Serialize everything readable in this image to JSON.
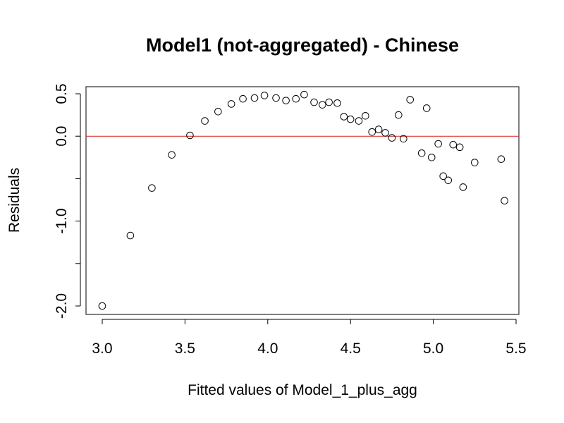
{
  "chart_data": {
    "type": "scatter",
    "title": "Model1 (not-aggregated) - Chinese",
    "xlabel": "Fitted values of Model_1_plus_agg",
    "ylabel": "Residuals",
    "xlim": [
      3.0,
      5.5
    ],
    "ylim": [
      -2.0,
      0.5
    ],
    "x_ticks": [
      3.0,
      3.5,
      4.0,
      4.5,
      5.0,
      5.5
    ],
    "x_tick_labels": [
      "3.0",
      "3.5",
      "4.0",
      "4.5",
      "5.0",
      "5.5"
    ],
    "y_ticks": [
      -2.0,
      -1.5,
      -1.0,
      -0.5,
      0.0,
      0.5
    ],
    "y_tick_labels": [
      "-2.0",
      "",
      "-1.0",
      "",
      "0.0",
      "0.5"
    ],
    "grid": false,
    "reference_line": {
      "y": 0.0,
      "color": "#d62020"
    },
    "marker_color": "#000000",
    "points": [
      {
        "x": 3.0,
        "y": -2.0
      },
      {
        "x": 3.17,
        "y": -1.17
      },
      {
        "x": 3.3,
        "y": -0.61
      },
      {
        "x": 3.42,
        "y": -0.22
      },
      {
        "x": 3.53,
        "y": 0.01
      },
      {
        "x": 3.62,
        "y": 0.18
      },
      {
        "x": 3.7,
        "y": 0.29
      },
      {
        "x": 3.78,
        "y": 0.38
      },
      {
        "x": 3.85,
        "y": 0.44
      },
      {
        "x": 3.92,
        "y": 0.45
      },
      {
        "x": 3.98,
        "y": 0.48
      },
      {
        "x": 4.05,
        "y": 0.45
      },
      {
        "x": 4.11,
        "y": 0.42
      },
      {
        "x": 4.17,
        "y": 0.44
      },
      {
        "x": 4.22,
        "y": 0.49
      },
      {
        "x": 4.28,
        "y": 0.4
      },
      {
        "x": 4.33,
        "y": 0.37
      },
      {
        "x": 4.37,
        "y": 0.4
      },
      {
        "x": 4.42,
        "y": 0.39
      },
      {
        "x": 4.46,
        "y": 0.23
      },
      {
        "x": 4.5,
        "y": 0.2
      },
      {
        "x": 4.55,
        "y": 0.18
      },
      {
        "x": 4.59,
        "y": 0.24
      },
      {
        "x": 4.63,
        "y": 0.05
      },
      {
        "x": 4.67,
        "y": 0.08
      },
      {
        "x": 4.71,
        "y": 0.04
      },
      {
        "x": 4.75,
        "y": -0.02
      },
      {
        "x": 4.79,
        "y": 0.25
      },
      {
        "x": 4.82,
        "y": -0.03
      },
      {
        "x": 4.86,
        "y": 0.43
      },
      {
        "x": 4.93,
        "y": -0.2
      },
      {
        "x": 4.96,
        "y": 0.33
      },
      {
        "x": 4.99,
        "y": -0.25
      },
      {
        "x": 5.03,
        "y": -0.09
      },
      {
        "x": 5.06,
        "y": -0.47
      },
      {
        "x": 5.09,
        "y": -0.52
      },
      {
        "x": 5.12,
        "y": -0.1
      },
      {
        "x": 5.16,
        "y": -0.13
      },
      {
        "x": 5.18,
        "y": -0.6
      },
      {
        "x": 5.25,
        "y": -0.31
      },
      {
        "x": 5.41,
        "y": -0.27
      },
      {
        "x": 5.43,
        "y": -0.76
      }
    ]
  }
}
